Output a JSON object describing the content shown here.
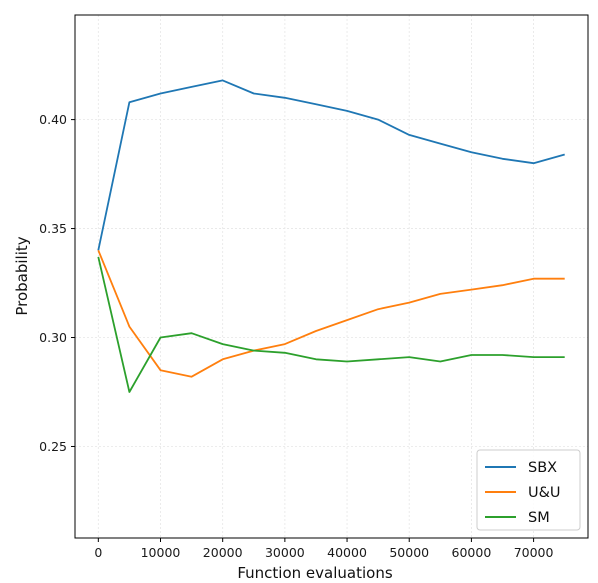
{
  "chart_data": {
    "type": "line",
    "xlabel": "Function evaluations",
    "ylabel": "Probability",
    "xlim": [
      -3750,
      78750
    ],
    "ylim": [
      0.208,
      0.448
    ],
    "xticks": [
      0,
      10000,
      20000,
      30000,
      40000,
      50000,
      60000,
      70000
    ],
    "yticks": [
      0.25,
      0.3,
      0.35,
      0.4
    ],
    "grid": true,
    "legend_position": "bottom-right",
    "x": [
      0,
      5000,
      10000,
      15000,
      20000,
      25000,
      30000,
      35000,
      40000,
      45000,
      50000,
      55000,
      60000,
      65000,
      70000,
      75000
    ],
    "series": [
      {
        "name": "SBX",
        "color": "#1f77b4",
        "values": [
          0.34,
          0.408,
          0.412,
          0.415,
          0.418,
          0.412,
          0.41,
          0.407,
          0.404,
          0.4,
          0.393,
          0.389,
          0.385,
          0.382,
          0.38,
          0.384
        ]
      },
      {
        "name": "U&U",
        "color": "#ff7f0e",
        "values": [
          0.34,
          0.305,
          0.285,
          0.282,
          0.29,
          0.294,
          0.297,
          0.303,
          0.308,
          0.313,
          0.316,
          0.32,
          0.322,
          0.324,
          0.327,
          0.327
        ]
      },
      {
        "name": "SM",
        "color": "#2ca02c",
        "values": [
          0.337,
          0.275,
          0.3,
          0.302,
          0.297,
          0.294,
          0.293,
          0.29,
          0.289,
          0.29,
          0.291,
          0.289,
          0.292,
          0.292,
          0.291,
          0.291
        ]
      }
    ]
  }
}
